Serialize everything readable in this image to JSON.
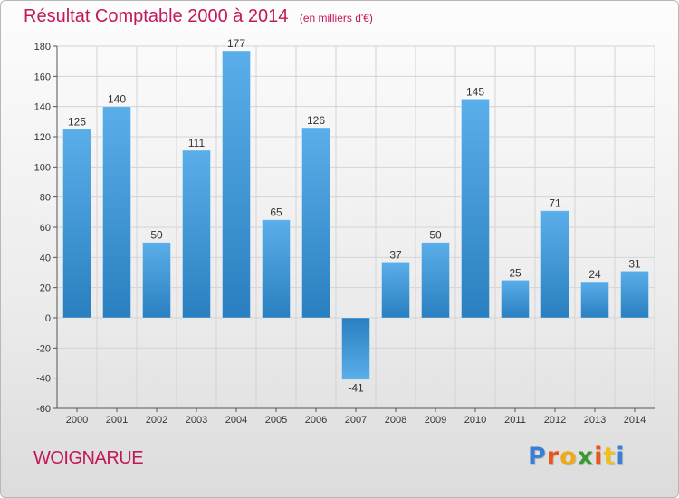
{
  "header": {
    "title": "Résultat Comptable 2000 à 2014",
    "subtitle": "(en milliers d'€)"
  },
  "footer": {
    "commune": "WOIGNARUE",
    "brand": "Proxiti",
    "brand_colors": [
      "#3a7fd5",
      "#e9551f",
      "#f0a81c",
      "#3b9a2f",
      "#e9551f",
      "#f0c020",
      "#3a7fd5"
    ]
  },
  "colors": {
    "title": "#c2185b",
    "bar_top": "#5aaee9",
    "bar_bottom": "#2a7fc0",
    "grid": "#d4d4d4",
    "axis_text": "#333333"
  },
  "chart_data": {
    "type": "bar",
    "title": "Résultat Comptable 2000 à 2014",
    "subtitle": "(en milliers d'€)",
    "categories": [
      "2000",
      "2001",
      "2002",
      "2003",
      "2004",
      "2005",
      "2006",
      "2007",
      "2008",
      "2009",
      "2010",
      "2011",
      "2012",
      "2013",
      "2014"
    ],
    "values": [
      125,
      140,
      50,
      111,
      177,
      65,
      126,
      -41,
      37,
      50,
      145,
      25,
      71,
      24,
      31
    ],
    "ylim": [
      -60,
      180
    ],
    "yticks": [
      -60,
      -40,
      -20,
      0,
      20,
      40,
      60,
      80,
      100,
      120,
      140,
      160,
      180
    ],
    "grid": true,
    "xlabel": "",
    "ylabel": ""
  }
}
